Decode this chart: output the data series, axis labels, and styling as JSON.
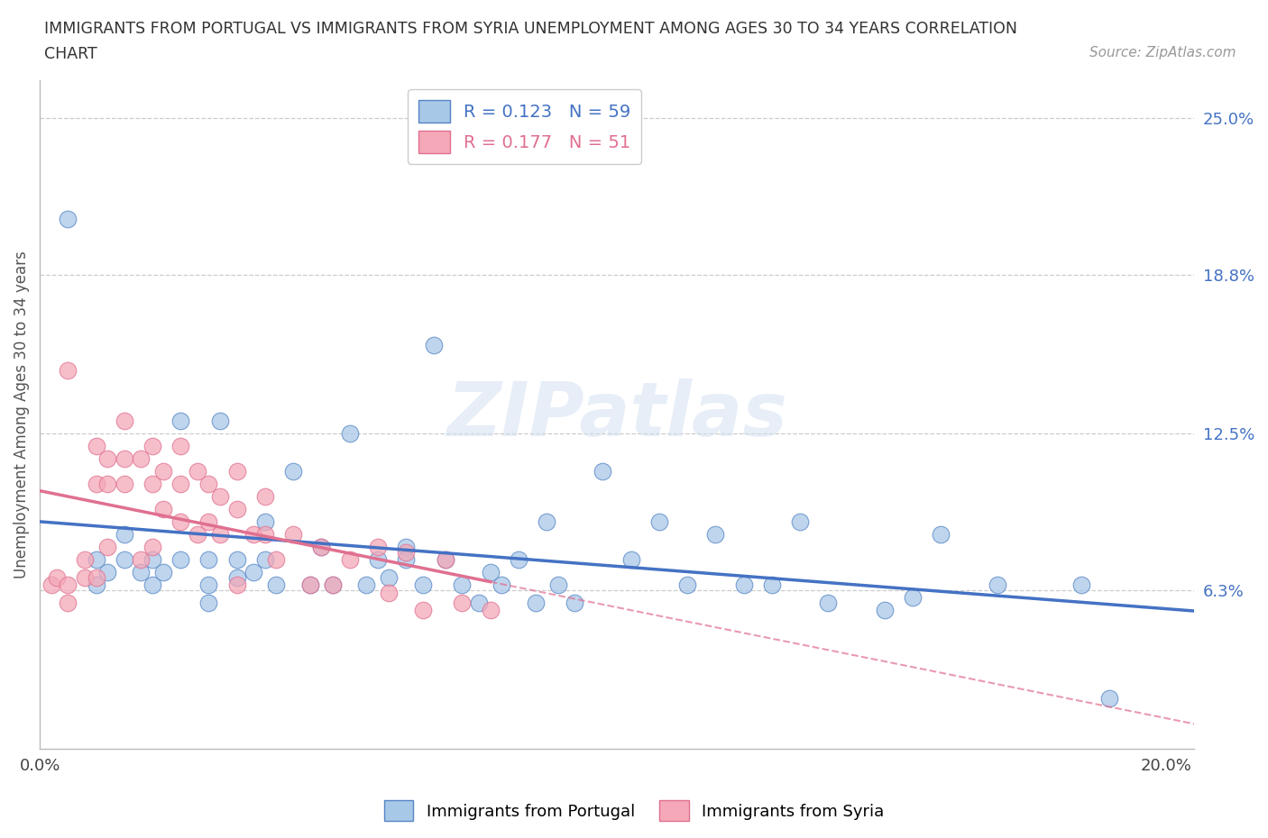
{
  "title_line1": "IMMIGRANTS FROM PORTUGAL VS IMMIGRANTS FROM SYRIA UNEMPLOYMENT AMONG AGES 30 TO 34 YEARS CORRELATION",
  "title_line2": "CHART",
  "source_text": "Source: ZipAtlas.com",
  "ylabel": "Unemployment Among Ages 30 to 34 years",
  "xlim": [
    0.0,
    0.205
  ],
  "ylim": [
    0.0,
    0.265
  ],
  "x_tick_labels": [
    "0.0%",
    "20.0%"
  ],
  "x_tick_values": [
    0.0,
    0.2
  ],
  "y_tick_labels_right": [
    "6.3%",
    "12.5%",
    "18.8%",
    "25.0%"
  ],
  "y_tick_values_right": [
    0.063,
    0.125,
    0.188,
    0.25
  ],
  "R_portugal": 0.123,
  "N_portugal": 59,
  "R_syria": 0.177,
  "N_syria": 51,
  "portugal_color": "#a8c8e8",
  "syria_color": "#f4a8b8",
  "portugal_edge_color": "#5585c5",
  "syria_edge_color": "#e07090",
  "portugal_line_color": "#4472c4",
  "syria_line_color": "#e07090",
  "watermark": "ZIPatlas",
  "portugal_scatter_x": [
    0.005,
    0.01,
    0.01,
    0.012,
    0.015,
    0.015,
    0.018,
    0.02,
    0.02,
    0.022,
    0.025,
    0.025,
    0.03,
    0.03,
    0.03,
    0.032,
    0.035,
    0.035,
    0.038,
    0.04,
    0.04,
    0.042,
    0.045,
    0.048,
    0.05,
    0.052,
    0.055,
    0.058,
    0.06,
    0.062,
    0.065,
    0.065,
    0.068,
    0.07,
    0.072,
    0.075,
    0.078,
    0.08,
    0.082,
    0.085,
    0.088,
    0.09,
    0.092,
    0.095,
    0.1,
    0.105,
    0.11,
    0.115,
    0.12,
    0.125,
    0.13,
    0.135,
    0.14,
    0.15,
    0.155,
    0.16,
    0.17,
    0.185,
    0.19
  ],
  "portugal_scatter_y": [
    0.21,
    0.075,
    0.065,
    0.07,
    0.085,
    0.075,
    0.07,
    0.075,
    0.065,
    0.07,
    0.13,
    0.075,
    0.075,
    0.065,
    0.058,
    0.13,
    0.075,
    0.068,
    0.07,
    0.09,
    0.075,
    0.065,
    0.11,
    0.065,
    0.08,
    0.065,
    0.125,
    0.065,
    0.075,
    0.068,
    0.08,
    0.075,
    0.065,
    0.16,
    0.075,
    0.065,
    0.058,
    0.07,
    0.065,
    0.075,
    0.058,
    0.09,
    0.065,
    0.058,
    0.11,
    0.075,
    0.09,
    0.065,
    0.085,
    0.065,
    0.065,
    0.09,
    0.058,
    0.055,
    0.06,
    0.085,
    0.065,
    0.065,
    0.02
  ],
  "syria_scatter_x": [
    0.002,
    0.003,
    0.005,
    0.005,
    0.005,
    0.008,
    0.008,
    0.01,
    0.01,
    0.01,
    0.012,
    0.012,
    0.012,
    0.015,
    0.015,
    0.015,
    0.018,
    0.018,
    0.02,
    0.02,
    0.02,
    0.022,
    0.022,
    0.025,
    0.025,
    0.025,
    0.028,
    0.028,
    0.03,
    0.03,
    0.032,
    0.032,
    0.035,
    0.035,
    0.035,
    0.038,
    0.04,
    0.04,
    0.042,
    0.045,
    0.048,
    0.05,
    0.052,
    0.055,
    0.06,
    0.062,
    0.065,
    0.068,
    0.072,
    0.075,
    0.08
  ],
  "syria_scatter_y": [
    0.065,
    0.068,
    0.15,
    0.065,
    0.058,
    0.075,
    0.068,
    0.12,
    0.105,
    0.068,
    0.115,
    0.105,
    0.08,
    0.13,
    0.115,
    0.105,
    0.115,
    0.075,
    0.12,
    0.105,
    0.08,
    0.11,
    0.095,
    0.12,
    0.105,
    0.09,
    0.11,
    0.085,
    0.105,
    0.09,
    0.1,
    0.085,
    0.11,
    0.095,
    0.065,
    0.085,
    0.1,
    0.085,
    0.075,
    0.085,
    0.065,
    0.08,
    0.065,
    0.075,
    0.08,
    0.062,
    0.078,
    0.055,
    0.075,
    0.058,
    0.055
  ]
}
